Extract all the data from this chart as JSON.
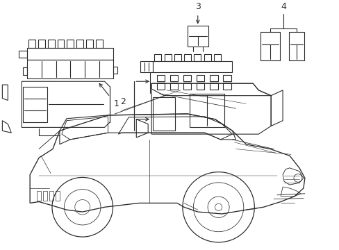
{
  "background_color": "#ffffff",
  "line_color": "#2a2a2a",
  "line_width": 0.8,
  "fig_width": 4.89,
  "fig_height": 3.6,
  "dpi": 100
}
